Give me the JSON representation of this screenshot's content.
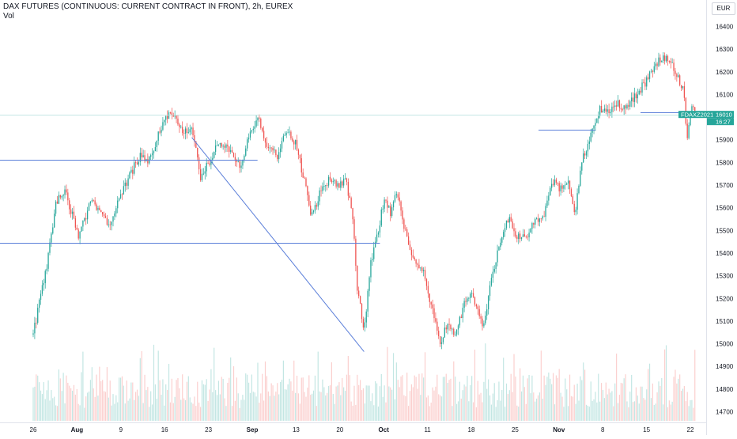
{
  "header": {
    "title": "DAX FUTURES (CONTINUOUS: CURRENT CONTRACT IN FRONT), 2h, EUREX",
    "sub_label": "Vol"
  },
  "axis": {
    "currency": "EUR"
  },
  "colors": {
    "up": "#26a69a",
    "down": "#ef5350",
    "drawing": "#5b7fd9",
    "price_tag": "#26a69a"
  },
  "chart_data": {
    "type": "candlestick",
    "interval": "2h",
    "y_unit": "EUR",
    "ylim": [
      14640,
      16430
    ],
    "y_ticks": [
      14700,
      14800,
      14900,
      15000,
      15100,
      15200,
      15300,
      15400,
      15500,
      15600,
      15700,
      15800,
      15900,
      16000,
      16100,
      16200,
      16300,
      16400
    ],
    "x_ticks": [
      "26",
      "Aug",
      "9",
      "16",
      "23",
      "Sep",
      "13",
      "20",
      "Oct",
      "11",
      "18",
      "25",
      "Nov",
      "8",
      "15",
      "22"
    ],
    "price_path": [
      {
        "t": 0,
        "p": 15040
      },
      {
        "t": 0.6,
        "p": 15350
      },
      {
        "t": 1.0,
        "p": 15620
      },
      {
        "t": 1.4,
        "p": 15680
      },
      {
        "t": 2.0,
        "p": 15470
      },
      {
        "t": 2.6,
        "p": 15640
      },
      {
        "t": 3.3,
        "p": 15520
      },
      {
        "t": 3.8,
        "p": 15640
      },
      {
        "t": 4.3,
        "p": 15750
      },
      {
        "t": 4.7,
        "p": 15830
      },
      {
        "t": 5.1,
        "p": 15800
      },
      {
        "t": 5.6,
        "p": 15950
      },
      {
        "t": 6.1,
        "p": 16030
      },
      {
        "t": 6.6,
        "p": 15930
      },
      {
        "t": 7.0,
        "p": 15960
      },
      {
        "t": 7.4,
        "p": 15730
      },
      {
        "t": 7.8,
        "p": 15810
      },
      {
        "t": 8.2,
        "p": 15900
      },
      {
        "t": 8.7,
        "p": 15850
      },
      {
        "t": 9.1,
        "p": 15780
      },
      {
        "t": 9.5,
        "p": 15900
      },
      {
        "t": 9.9,
        "p": 16010
      },
      {
        "t": 10.3,
        "p": 15880
      },
      {
        "t": 10.8,
        "p": 15830
      },
      {
        "t": 11.2,
        "p": 15950
      },
      {
        "t": 11.6,
        "p": 15880
      },
      {
        "t": 12.0,
        "p": 15700
      },
      {
        "t": 12.3,
        "p": 15560
      },
      {
        "t": 12.7,
        "p": 15680
      },
      {
        "t": 13.1,
        "p": 15730
      },
      {
        "t": 13.5,
        "p": 15700
      },
      {
        "t": 13.8,
        "p": 15720
      },
      {
        "t": 14.1,
        "p": 15560
      },
      {
        "t": 14.3,
        "p": 15250
      },
      {
        "t": 14.6,
        "p": 15060
      },
      {
        "t": 14.9,
        "p": 15360
      },
      {
        "t": 15.2,
        "p": 15480
      },
      {
        "t": 15.5,
        "p": 15650
      },
      {
        "t": 15.8,
        "p": 15570
      },
      {
        "t": 16.0,
        "p": 15680
      },
      {
        "t": 16.4,
        "p": 15510
      },
      {
        "t": 16.8,
        "p": 15360
      },
      {
        "t": 17.2,
        "p": 15320
      },
      {
        "t": 17.6,
        "p": 15150
      },
      {
        "t": 18.0,
        "p": 15000
      },
      {
        "t": 18.3,
        "p": 15100
      },
      {
        "t": 18.6,
        "p": 15030
      },
      {
        "t": 19.0,
        "p": 15170
      },
      {
        "t": 19.3,
        "p": 15230
      },
      {
        "t": 19.6,
        "p": 15140
      },
      {
        "t": 19.9,
        "p": 15080
      },
      {
        "t": 20.2,
        "p": 15290
      },
      {
        "t": 20.6,
        "p": 15440
      },
      {
        "t": 21.0,
        "p": 15560
      },
      {
        "t": 21.3,
        "p": 15480
      },
      {
        "t": 21.7,
        "p": 15470
      },
      {
        "t": 22.1,
        "p": 15530
      },
      {
        "t": 22.5,
        "p": 15550
      },
      {
        "t": 22.9,
        "p": 15720
      },
      {
        "t": 23.3,
        "p": 15680
      },
      {
        "t": 23.6,
        "p": 15720
      },
      {
        "t": 23.9,
        "p": 15560
      },
      {
        "t": 24.2,
        "p": 15800
      },
      {
        "t": 24.6,
        "p": 15920
      },
      {
        "t": 25.0,
        "p": 16040
      },
      {
        "t": 25.4,
        "p": 16020
      },
      {
        "t": 25.8,
        "p": 16060
      },
      {
        "t": 26.2,
        "p": 16040
      },
      {
        "t": 26.6,
        "p": 16100
      },
      {
        "t": 27.0,
        "p": 16150
      },
      {
        "t": 27.4,
        "p": 16230
      },
      {
        "t": 27.8,
        "p": 16270
      },
      {
        "t": 28.1,
        "p": 16250
      },
      {
        "t": 28.4,
        "p": 16180
      },
      {
        "t": 28.7,
        "p": 16130
      },
      {
        "t": 28.85,
        "p": 15910
      },
      {
        "t": 29.0,
        "p": 16030
      }
    ],
    "volume_range": [
      0.15,
      0.9
    ],
    "horizontal_lines": [
      {
        "price": 15812,
        "from_t": 0,
        "to_t": 9.9
      },
      {
        "price": 15445,
        "from_t": 0,
        "to_t": 15.3
      },
      {
        "price": 15945,
        "from_t": 22.3,
        "to_t": 24.8
      },
      {
        "price": 16022,
        "from_t": 26.8,
        "to_t": 29.0
      },
      {
        "price": 16010,
        "from_t": 0,
        "to_t": 29.4,
        "style": "price-line"
      }
    ],
    "trend_lines": [
      {
        "from_t": 7.0,
        "from_p": 15910,
        "to_t": 14.6,
        "to_p": 14965
      }
    ],
    "price_tags": [
      {
        "label": "FDAXZ2021",
        "value": "16010"
      },
      {
        "label": "",
        "value": "16:27"
      }
    ]
  }
}
